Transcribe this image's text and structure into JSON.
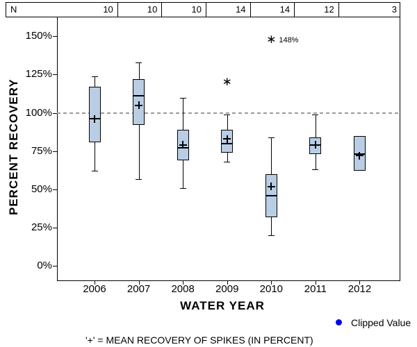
{
  "n_row": {
    "header": "N",
    "values": [
      "10",
      "10",
      "10",
      "14",
      "14",
      "12",
      "3"
    ]
  },
  "chart_data": {
    "type": "boxplot",
    "title": "",
    "xlabel": "WATER YEAR",
    "ylabel": "PERCENT RECOVERY",
    "categories": [
      "2006",
      "2007",
      "2008",
      "2009",
      "2010",
      "2011",
      "2012"
    ],
    "n_per_category": [
      10,
      10,
      10,
      14,
      14,
      12,
      3
    ],
    "y_axis": {
      "ticks": [
        0,
        25,
        50,
        75,
        100,
        125,
        150
      ],
      "tick_labels": [
        "0%",
        "25%",
        "50%",
        "75%",
        "100%",
        "125%",
        "150%"
      ],
      "unit": "percent"
    },
    "reference_line": {
      "value": 100,
      "style": "dashed"
    },
    "series": [
      {
        "category": "2006",
        "n": 10,
        "whisker_low": 62,
        "q1": 81,
        "median": 96,
        "mean": 96,
        "q3": 117,
        "whisker_high": 124,
        "outliers": []
      },
      {
        "category": "2007",
        "n": 10,
        "whisker_low": 57,
        "q1": 92,
        "median": 111,
        "mean": 105,
        "q3": 122,
        "whisker_high": 133,
        "outliers": []
      },
      {
        "category": "2008",
        "n": 10,
        "whisker_low": 51,
        "q1": 69,
        "median": 77,
        "mean": 79,
        "q3": 89,
        "whisker_high": 110,
        "outliers": []
      },
      {
        "category": "2009",
        "n": 14,
        "whisker_low": 68,
        "q1": 74,
        "median": 80,
        "mean": 83,
        "q3": 89,
        "whisker_high": 99,
        "outliers": [
          {
            "value": 120,
            "label": ""
          }
        ]
      },
      {
        "category": "2010",
        "n": 14,
        "whisker_low": 20,
        "q1": 32,
        "median": 46,
        "mean": 52,
        "q3": 60,
        "whisker_high": 84,
        "outliers": [
          {
            "value": 148,
            "label": "148%"
          }
        ]
      },
      {
        "category": "2011",
        "n": 12,
        "whisker_low": 63,
        "q1": 73,
        "median": 79,
        "mean": 79,
        "q3": 84,
        "whisker_high": 99,
        "outliers": []
      },
      {
        "category": "2012",
        "n": 3,
        "whisker_low": null,
        "q1": 62,
        "median": 73,
        "mean": 72,
        "q3": 85,
        "whisker_high": null,
        "outliers": []
      }
    ],
    "outlier_marker_glyph": "∗",
    "mean_marker_glyph": "+",
    "legend_position": "bottom-right"
  },
  "legend": {
    "label": "Clipped Value",
    "marker": "filled-circle",
    "marker_color": "#0000ee"
  },
  "footnote": "'+' = MEAN RECOVERY OF SPIKES (IN PERCENT)",
  "colors": {
    "box_fill": "#b9cde4",
    "box_border": "#000000",
    "axis": "#000000",
    "reference_line": "#999999",
    "text": "#000000",
    "clipped_marker": "#0000ee"
  }
}
